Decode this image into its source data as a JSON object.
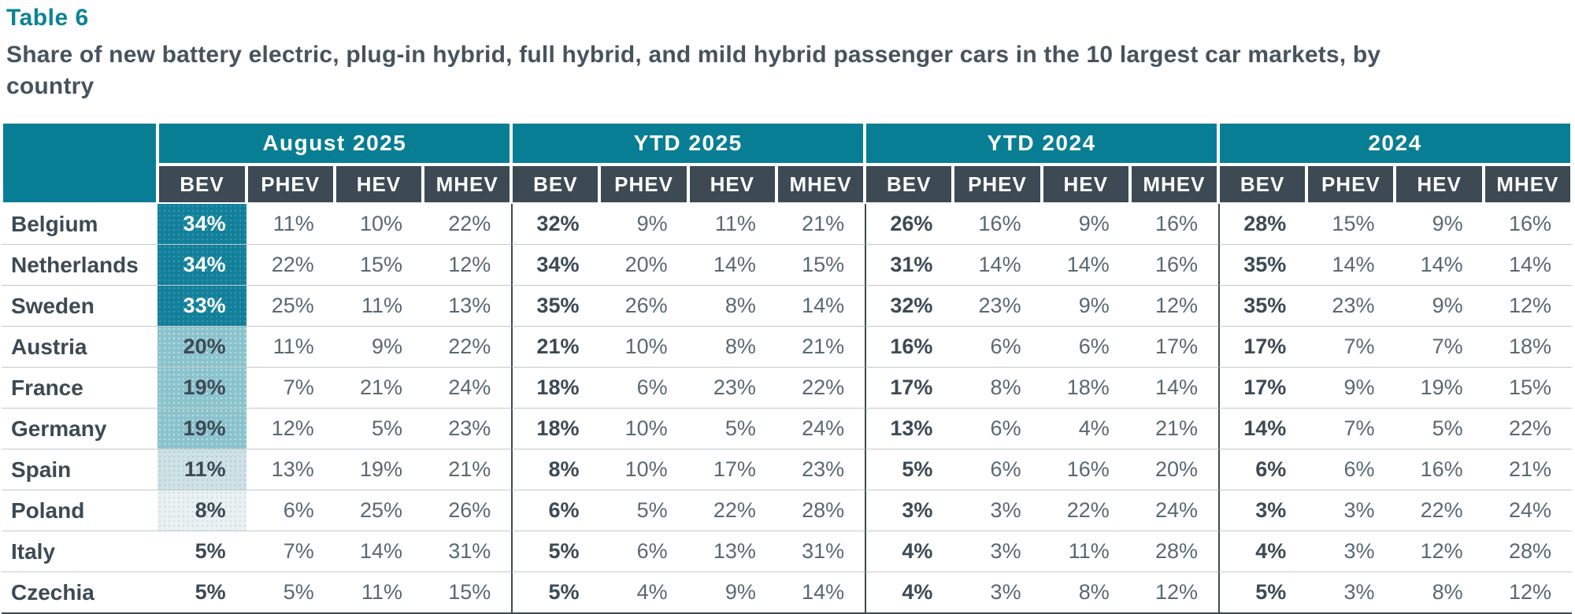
{
  "header": {
    "label": "Table 6",
    "title": "Share of new battery electric, plug-in hybrid, full hybrid, and mild hybrid passenger cars in the 10 largest car markets, by country"
  },
  "colors": {
    "teal_header": "#087e94",
    "subheader_dark": "#3d4a54",
    "bold_text": "#3d4a54",
    "value_text": "#5a6872",
    "row_line": "#c4cacd",
    "heat_dark": "#12809a",
    "heat_medium": "#8bc3cd",
    "heat_light": "#cfe1e5",
    "heat_faint": "#e9f1f2"
  },
  "chart_data": {
    "type": "table",
    "title": "Share of new battery electric, plug-in hybrid, full hybrid, and mild hybrid passenger cars in the 10 largest car markets, by country",
    "column_groups": [
      "August 2025",
      "YTD 2025",
      "YTD 2024",
      "2024"
    ],
    "sub_columns": [
      "BEV",
      "PHEV",
      "HEV",
      "MHEV"
    ],
    "unit": "%",
    "rows": [
      {
        "country": "Belgium",
        "values": [
          [
            34,
            11,
            10,
            22
          ],
          [
            32,
            9,
            11,
            21
          ],
          [
            26,
            16,
            9,
            16
          ],
          [
            28,
            15,
            9,
            16
          ]
        ],
        "heat": {
          "bg": "#12809a",
          "text": "#ffffff",
          "dot": "rgba(255,255,255,0.18)"
        }
      },
      {
        "country": "Netherlands",
        "values": [
          [
            34,
            22,
            15,
            12
          ],
          [
            34,
            20,
            14,
            15
          ],
          [
            31,
            14,
            14,
            16
          ],
          [
            35,
            14,
            14,
            14
          ]
        ],
        "heat": {
          "bg": "#12809a",
          "text": "#ffffff",
          "dot": "rgba(255,255,255,0.18)"
        }
      },
      {
        "country": "Sweden",
        "values": [
          [
            33,
            25,
            11,
            13
          ],
          [
            35,
            26,
            8,
            14
          ],
          [
            32,
            23,
            9,
            12
          ],
          [
            35,
            23,
            9,
            12
          ]
        ],
        "heat": {
          "bg": "#12809a",
          "text": "#ffffff",
          "dot": "rgba(255,255,255,0.18)"
        }
      },
      {
        "country": "Austria",
        "values": [
          [
            20,
            11,
            9,
            22
          ],
          [
            21,
            10,
            8,
            21
          ],
          [
            16,
            6,
            6,
            17
          ],
          [
            17,
            7,
            7,
            18
          ]
        ],
        "heat": {
          "bg": "#8bc3cd",
          "text": "#3d4a54",
          "dot": "rgba(255,255,255,0.45)"
        }
      },
      {
        "country": "France",
        "values": [
          [
            19,
            7,
            21,
            24
          ],
          [
            18,
            6,
            23,
            22
          ],
          [
            17,
            8,
            18,
            14
          ],
          [
            17,
            9,
            19,
            15
          ]
        ],
        "heat": {
          "bg": "#8bc3cd",
          "text": "#3d4a54",
          "dot": "rgba(255,255,255,0.45)"
        }
      },
      {
        "country": "Germany",
        "values": [
          [
            19,
            12,
            5,
            23
          ],
          [
            18,
            10,
            5,
            24
          ],
          [
            13,
            6,
            4,
            21
          ],
          [
            14,
            7,
            5,
            22
          ]
        ],
        "heat": {
          "bg": "#8bc3cd",
          "text": "#3d4a54",
          "dot": "rgba(255,255,255,0.45)"
        }
      },
      {
        "country": "Spain",
        "values": [
          [
            11,
            13,
            19,
            21
          ],
          [
            8,
            10,
            17,
            23
          ],
          [
            5,
            6,
            16,
            20
          ],
          [
            6,
            6,
            16,
            21
          ]
        ],
        "heat": {
          "bg": "#cfe1e5",
          "text": "#3d4a54",
          "dot": "rgba(8,126,148,0.18)"
        }
      },
      {
        "country": "Poland",
        "values": [
          [
            8,
            6,
            25,
            26
          ],
          [
            6,
            5,
            22,
            28
          ],
          [
            3,
            3,
            22,
            24
          ],
          [
            3,
            3,
            22,
            24
          ]
        ],
        "heat": {
          "bg": "#e9f1f2",
          "text": "#3d4a54",
          "dot": "rgba(8,126,148,0.15)"
        }
      },
      {
        "country": "Italy",
        "values": [
          [
            5,
            7,
            14,
            31
          ],
          [
            5,
            6,
            13,
            31
          ],
          [
            4,
            3,
            11,
            28
          ],
          [
            4,
            3,
            12,
            28
          ]
        ],
        "heat": null
      },
      {
        "country": "Czechia",
        "values": [
          [
            5,
            5,
            11,
            15
          ],
          [
            5,
            4,
            9,
            14
          ],
          [
            4,
            3,
            8,
            12
          ],
          [
            5,
            3,
            8,
            12
          ]
        ],
        "heat": null
      }
    ]
  }
}
